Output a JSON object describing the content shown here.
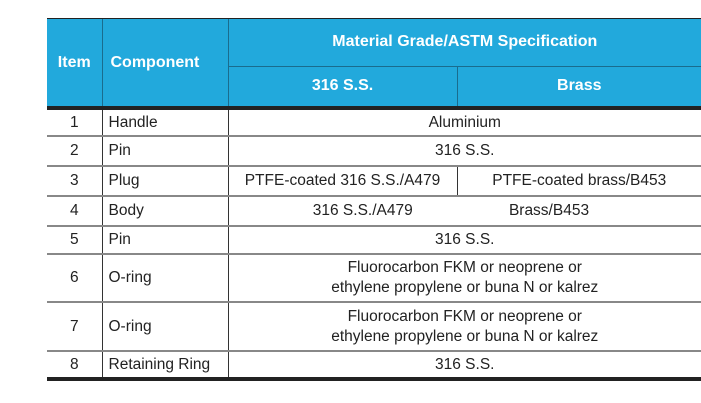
{
  "header": {
    "item": "Item",
    "component": "Component",
    "material_group": "Material Grade/ASTM Specification",
    "col_ss": "316 S.S.",
    "col_brass": "Brass"
  },
  "rows": [
    {
      "item": "1",
      "component": "Handle",
      "material": "Aluminium"
    },
    {
      "item": "2",
      "component": "Pin",
      "material": "316 S.S."
    },
    {
      "item": "3",
      "component": "Plug",
      "ss": "PTFE-coated 316 S.S./A479",
      "brass": "PTFE-coated brass/B453"
    },
    {
      "item": "4",
      "component": "Body",
      "ss": "316 S.S./A479",
      "brass": "Brass/B453"
    },
    {
      "item": "5",
      "component": "Pin",
      "material": "316 S.S."
    },
    {
      "item": "6",
      "component": "O-ring",
      "line1": "Fluorocarbon FKM or neoprene or",
      "line2": "ethylene propylene or buna N or kalrez"
    },
    {
      "item": "7",
      "component": "O-ring",
      "line1": "Fluorocarbon FKM or neoprene or",
      "line2": "ethylene propylene or buna N or kalrez"
    },
    {
      "item": "8",
      "component": "Retaining Ring",
      "material": "316 S.S."
    }
  ],
  "colors": {
    "header_bg": "#22a9dc",
    "header_text": "#ffffff"
  }
}
